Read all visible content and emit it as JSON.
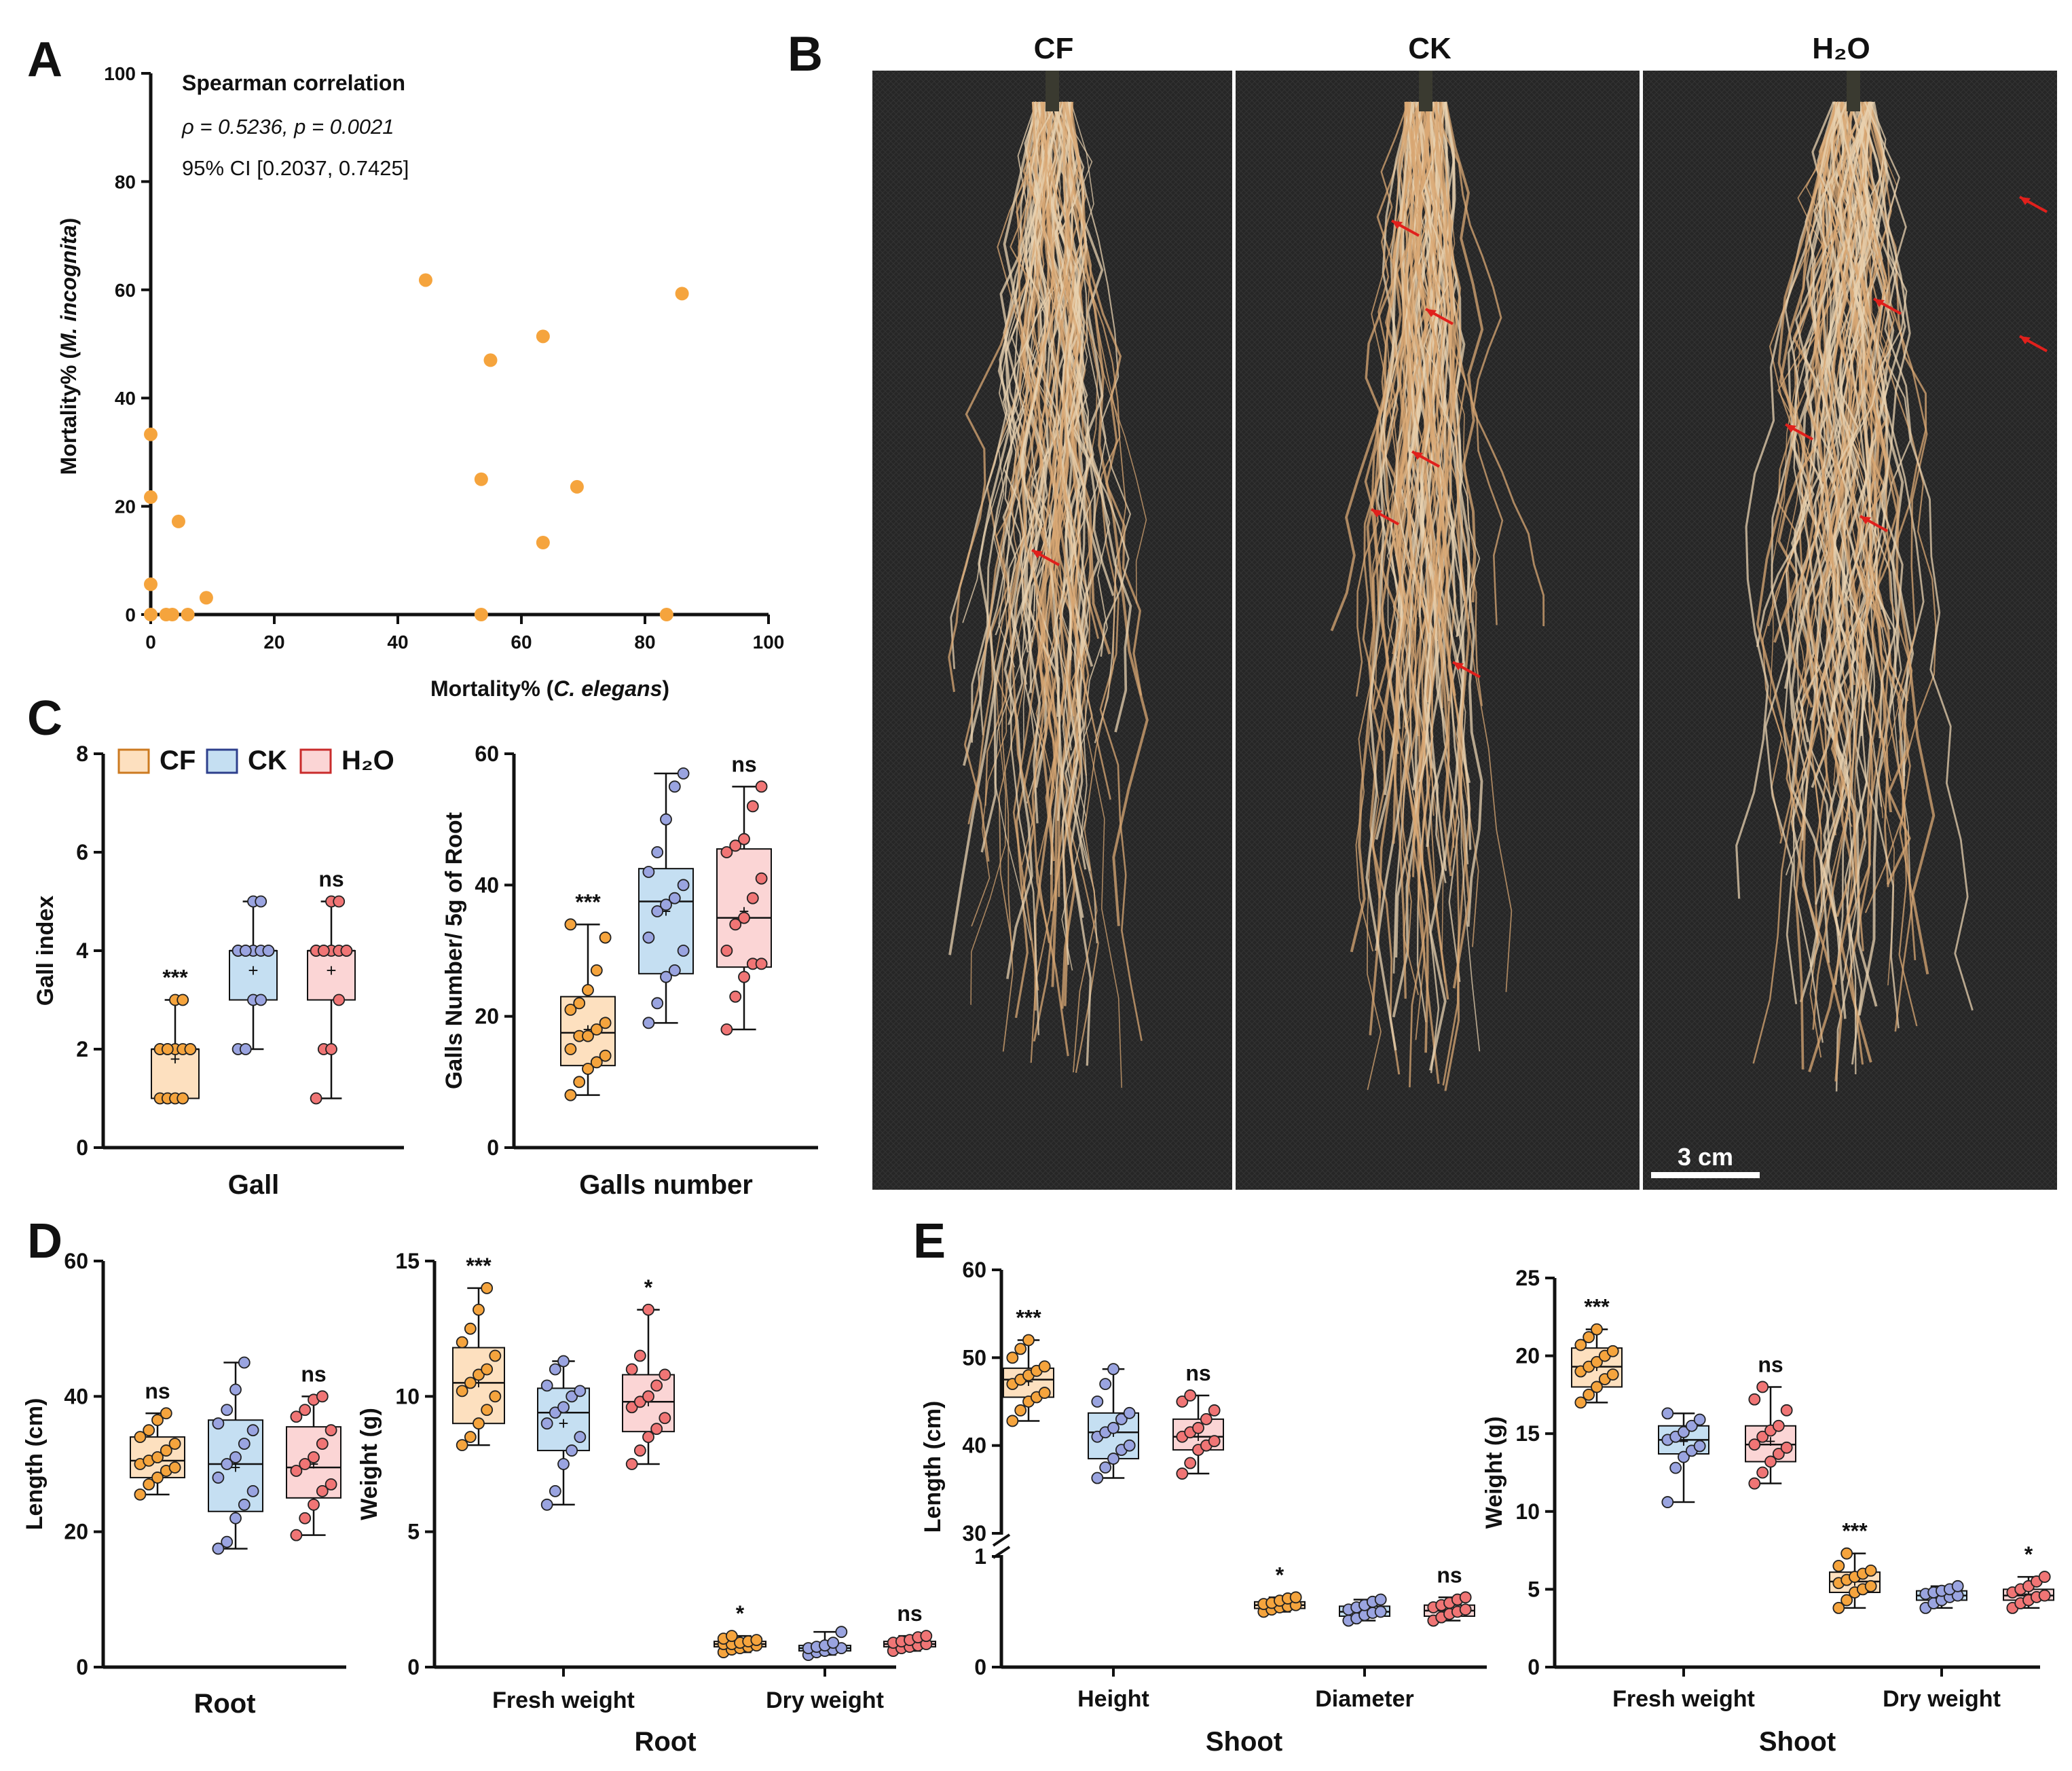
{
  "panel_letters": {
    "A": "A",
    "B": "B",
    "C": "C",
    "D": "D",
    "E": "E"
  },
  "colors": {
    "CF": {
      "fill": "#fde0bf",
      "stroke": "#cc7a20",
      "dot": "#f5a43d"
    },
    "CK": {
      "fill": "#c5dff2",
      "stroke": "#2d3f8c",
      "dot": "#9aa4e0"
    },
    "H2O": {
      "fill": "#fbd5d5",
      "stroke": "#c92b2b",
      "dot": "#f07575"
    },
    "scatter": "#f5a43d",
    "photo_bg": "#2a2a2a",
    "root": "#d9a874",
    "arrow": "#e0201c"
  },
  "legend": [
    {
      "key": "CF",
      "label": "CF"
    },
    {
      "key": "CK",
      "label": "CK"
    },
    {
      "key": "H2O",
      "label": "H₂O"
    }
  ],
  "photo": {
    "labels": [
      "CF",
      "CK",
      "H₂O"
    ],
    "scale_bar": "3 cm"
  },
  "chart_data": [
    {
      "id": "A",
      "type": "scatter",
      "xlabel_prefix": "Mortality% (",
      "xlabel_italic": "C. elegans",
      "xlabel_suffix": ")",
      "ylabel_prefix": "Mortality% (",
      "ylabel_italic": "M. incognita",
      "ylabel_suffix": ")",
      "xlim": [
        0,
        100
      ],
      "ylim": [
        0,
        100
      ],
      "xticks": [
        0,
        20,
        40,
        60,
        80,
        100
      ],
      "yticks": [
        0,
        20,
        40,
        60,
        80,
        100
      ],
      "annotation": {
        "title": "Spearman correlation",
        "rho_text": "ρ = 0.5236, ",
        "p_text": "p = 0.0021",
        "ci_text": "95% CI [0.2037, 0.7425]"
      },
      "points": [
        [
          0,
          33.3
        ],
        [
          0,
          21.7
        ],
        [
          0,
          5.6
        ],
        [
          0,
          0
        ],
        [
          2.5,
          0
        ],
        [
          3.5,
          0
        ],
        [
          4.5,
          17.2
        ],
        [
          6,
          0
        ],
        [
          9,
          3.1
        ],
        [
          44.5,
          61.8
        ],
        [
          53.5,
          25
        ],
        [
          53.5,
          0
        ],
        [
          55,
          47
        ],
        [
          63.5,
          51.4
        ],
        [
          63.5,
          13.3
        ],
        [
          69,
          23.6
        ],
        [
          83.5,
          0
        ],
        [
          86,
          59.3
        ]
      ]
    },
    {
      "id": "C1",
      "type": "boxplot",
      "ylabel": "Gall index",
      "xlabel": "Gall",
      "ylim": [
        0,
        8
      ],
      "yticks": [
        0,
        2,
        4,
        6,
        8
      ],
      "groups": [
        {
          "key": "CF",
          "min": 1,
          "q1": 1,
          "median": 2,
          "q3": 2,
          "max": 3,
          "mean": 1.8,
          "sig": "***",
          "points": [
            1,
            1,
            1,
            1,
            2,
            2,
            2,
            2,
            2,
            2,
            2,
            2,
            3,
            3
          ]
        },
        {
          "key": "CK",
          "min": 2,
          "q1": 3,
          "median": 4,
          "q3": 4,
          "max": 5,
          "mean": 3.6,
          "sig": "",
          "points": [
            2,
            2,
            3,
            3,
            4,
            4,
            4,
            4,
            4,
            4,
            4,
            4,
            5,
            5
          ]
        },
        {
          "key": "H2O",
          "min": 1,
          "q1": 3,
          "median": 4,
          "q3": 4,
          "max": 5,
          "mean": 3.6,
          "sig": "ns",
          "points": [
            1,
            2,
            2,
            3,
            4,
            4,
            4,
            4,
            4,
            4,
            4,
            4,
            5,
            5
          ]
        }
      ]
    },
    {
      "id": "C2",
      "type": "boxplot",
      "ylabel": "Galls Number/ 5g of Root",
      "xlabel": "Galls number",
      "ylim": [
        0,
        60
      ],
      "yticks": [
        0,
        20,
        40,
        60
      ],
      "groups": [
        {
          "key": "CF",
          "min": 8,
          "q1": 12.5,
          "median": 17.5,
          "q3": 23,
          "max": 34,
          "mean": 18,
          "sig": "***",
          "points": [
            8,
            10,
            12,
            13,
            14,
            15,
            17,
            17,
            18,
            19,
            21,
            22,
            24,
            27,
            32,
            34
          ]
        },
        {
          "key": "CK",
          "min": 19,
          "q1": 26.5,
          "median": 37.5,
          "q3": 42.5,
          "max": 57,
          "mean": 36,
          "sig": "",
          "points": [
            19,
            22,
            26,
            27,
            30,
            32,
            36,
            37,
            38,
            40,
            42,
            45,
            50,
            55,
            57
          ]
        },
        {
          "key": "H2O",
          "min": 18,
          "q1": 27.5,
          "median": 35,
          "q3": 45.5,
          "max": 55,
          "mean": 36,
          "sig": "ns",
          "points": [
            18,
            23,
            26,
            28,
            28,
            30,
            34,
            35,
            38,
            41,
            45,
            46,
            47,
            52,
            55
          ]
        }
      ]
    },
    {
      "id": "D1",
      "type": "boxplot",
      "ylabel": "Length (cm)",
      "xlabel": "Root",
      "ylim": [
        0,
        60
      ],
      "yticks": [
        0,
        20,
        40,
        60
      ],
      "groups": [
        {
          "key": "CF",
          "min": 25.5,
          "q1": 28,
          "median": 30.5,
          "q3": 34,
          "max": 37.5,
          "mean": 31,
          "sig": "ns",
          "points": [
            25.5,
            27,
            28,
            29,
            29.5,
            30,
            30.5,
            31,
            32,
            33,
            34,
            35,
            36.5,
            37.5
          ]
        },
        {
          "key": "CK",
          "min": 17.5,
          "q1": 23,
          "median": 30,
          "q3": 36.5,
          "max": 45,
          "mean": 29.5,
          "sig": "",
          "points": [
            17.5,
            18.5,
            22,
            24,
            26,
            28,
            30,
            31,
            33,
            35,
            36,
            38,
            41,
            45
          ]
        },
        {
          "key": "H2O",
          "min": 19.5,
          "q1": 25,
          "median": 29.5,
          "q3": 35.5,
          "max": 40,
          "mean": 30,
          "sig": "ns",
          "points": [
            19.5,
            22,
            24,
            26,
            27,
            29,
            30,
            31,
            33,
            35,
            37,
            38,
            39.5,
            40
          ]
        }
      ]
    },
    {
      "id": "D2",
      "type": "boxplot",
      "ylabel": "Weight (g)",
      "xlabel": "Root",
      "ylim": [
        0,
        15
      ],
      "yticks": [
        0,
        5,
        10,
        15
      ],
      "categories": [
        "Fresh weight",
        "Dry weight"
      ],
      "sets": [
        [
          {
            "key": "CF",
            "min": 8.2,
            "q1": 9,
            "median": 10.5,
            "q3": 11.8,
            "max": 14,
            "mean": 10.5,
            "sig": "***",
            "points": [
              8.2,
              8.5,
              9,
              9.5,
              10,
              10.2,
              10.5,
              10.8,
              11,
              11.5,
              12,
              12.5,
              13.2,
              14
            ]
          },
          {
            "key": "CK",
            "min": 6,
            "q1": 8,
            "median": 9.4,
            "q3": 10.3,
            "max": 11.3,
            "mean": 9,
            "sig": "",
            "points": [
              6,
              6.5,
              7.5,
              8,
              8.5,
              9,
              9.4,
              9.6,
              10,
              10.2,
              10.4,
              11,
              11.3
            ]
          },
          {
            "key": "H2O",
            "min": 7.5,
            "q1": 8.7,
            "median": 9.8,
            "q3": 10.8,
            "max": 13.2,
            "mean": 9.8,
            "sig": "*",
            "points": [
              7.5,
              8,
              8.5,
              8.8,
              9.2,
              9.6,
              9.8,
              10,
              10.4,
              10.8,
              11,
              11.5,
              13.2
            ]
          }
        ],
        [
          {
            "key": "CF",
            "min": 0.55,
            "q1": 0.75,
            "median": 0.85,
            "q3": 0.95,
            "max": 1.15,
            "mean": 0.85,
            "sig": "*",
            "points": [
              0.55,
              0.65,
              0.7,
              0.75,
              0.8,
              0.85,
              0.85,
              0.9,
              0.95,
              1.0,
              1.05,
              1.15
            ]
          },
          {
            "key": "CK",
            "min": 0.45,
            "q1": 0.6,
            "median": 0.7,
            "q3": 0.8,
            "max": 1.3,
            "mean": 0.72,
            "sig": "",
            "points": [
              0.45,
              0.55,
              0.6,
              0.65,
              0.7,
              0.7,
              0.75,
              0.8,
              0.9,
              1.3
            ]
          },
          {
            "key": "H2O",
            "min": 0.6,
            "q1": 0.75,
            "median": 0.85,
            "q3": 0.95,
            "max": 1.15,
            "mean": 0.85,
            "sig": "ns",
            "points": [
              0.6,
              0.7,
              0.75,
              0.8,
              0.85,
              0.9,
              0.95,
              1.0,
              1.1,
              1.15
            ]
          }
        ]
      ]
    },
    {
      "id": "E1",
      "type": "boxplot",
      "ylabel": "Length (cm)",
      "xlabel": "Shoot",
      "categories": [
        "Height",
        "Diameter"
      ],
      "upper_yticks": [
        30,
        40,
        50,
        60
      ],
      "lower_yticks": [
        0,
        1
      ],
      "sets": [
        [
          {
            "key": "CF",
            "min": 42.8,
            "q1": 45.5,
            "median": 47.5,
            "q3": 48.8,
            "max": 52,
            "mean": 47.3,
            "sig": "***",
            "points": [
              42.8,
              44,
              45,
              45.5,
              46,
              47,
              47.5,
              48,
              48.5,
              49,
              50,
              51,
              52
            ]
          },
          {
            "key": "CK",
            "min": 36.3,
            "q1": 38.5,
            "median": 41.5,
            "q3": 43.7,
            "max": 48.7,
            "mean": 41.5,
            "sig": "",
            "points": [
              36.3,
              37.5,
              38.5,
              39.5,
              40,
              41,
              41.5,
              42,
              43,
              43.7,
              45,
              47,
              48.7
            ]
          },
          {
            "key": "H2O",
            "min": 36.8,
            "q1": 39.5,
            "median": 41,
            "q3": 43,
            "max": 45.7,
            "mean": 41,
            "sig": "ns",
            "points": [
              36.8,
              38,
              39.5,
              40,
              40.5,
              41,
              41.5,
              42,
              43,
              44,
              45,
              45.7
            ]
          }
        ],
        [
          {
            "key": "CF",
            "min": 0.5,
            "q1": 0.53,
            "median": 0.56,
            "q3": 0.59,
            "max": 0.63,
            "mean": 0.56,
            "sig": "*",
            "points": [
              0.5,
              0.52,
              0.54,
              0.55,
              0.56,
              0.57,
              0.58,
              0.6,
              0.62,
              0.63
            ]
          },
          {
            "key": "CK",
            "min": 0.42,
            "q1": 0.46,
            "median": 0.5,
            "q3": 0.55,
            "max": 0.61,
            "mean": 0.5,
            "sig": "",
            "points": [
              0.42,
              0.44,
              0.47,
              0.49,
              0.5,
              0.52,
              0.54,
              0.56,
              0.59,
              0.61
            ]
          },
          {
            "key": "H2O",
            "min": 0.42,
            "q1": 0.46,
            "median": 0.51,
            "q3": 0.56,
            "max": 0.63,
            "mean": 0.51,
            "sig": "ns",
            "points": [
              0.42,
              0.45,
              0.48,
              0.5,
              0.52,
              0.54,
              0.56,
              0.58,
              0.61,
              0.63
            ]
          }
        ]
      ]
    },
    {
      "id": "E2",
      "type": "boxplot",
      "ylabel": "Weight (g)",
      "xlabel": "Shoot",
      "ylim": [
        0,
        25
      ],
      "yticks": [
        0,
        5,
        10,
        15,
        20,
        25
      ],
      "categories": [
        "Fresh weight",
        "Dry weight"
      ],
      "sets": [
        [
          {
            "key": "CF",
            "min": 17,
            "q1": 18,
            "median": 19.3,
            "q3": 20.5,
            "max": 21.7,
            "mean": 19.3,
            "sig": "***",
            "points": [
              17,
              17.5,
              18,
              18.5,
              18.8,
              19,
              19.3,
              19.6,
              20,
              20.3,
              20.7,
              21.2,
              21.7
            ]
          },
          {
            "key": "CK",
            "min": 10.6,
            "q1": 13.7,
            "median": 14.6,
            "q3": 15.5,
            "max": 16.3,
            "mean": 14.5,
            "sig": "",
            "points": [
              10.6,
              12.8,
              13.5,
              13.9,
              14.2,
              14.6,
              14.8,
              15.1,
              15.5,
              15.9,
              16.3
            ]
          },
          {
            "key": "H2O",
            "min": 11.8,
            "q1": 13.2,
            "median": 14.3,
            "q3": 15.5,
            "max": 18,
            "mean": 14.5,
            "sig": "ns",
            "points": [
              11.8,
              12.5,
              13.2,
              13.7,
              14.1,
              14.3,
              14.8,
              15.2,
              15.5,
              16.5,
              17.2,
              18
            ]
          }
        ],
        [
          {
            "key": "CF",
            "min": 3.8,
            "q1": 4.8,
            "median": 5.5,
            "q3": 6.1,
            "max": 7.3,
            "mean": 5.5,
            "sig": "***",
            "points": [
              3.8,
              4.3,
              4.8,
              5,
              5.2,
              5.4,
              5.6,
              5.8,
              6,
              6.2,
              6.5,
              7.3
            ]
          },
          {
            "key": "CK",
            "min": 3.8,
            "q1": 4.3,
            "median": 4.6,
            "q3": 4.9,
            "max": 5.2,
            "mean": 4.6,
            "sig": "",
            "points": [
              3.8,
              4.1,
              4.3,
              4.5,
              4.6,
              4.7,
              4.8,
              4.9,
              5.0,
              5.2
            ]
          },
          {
            "key": "H2O",
            "min": 3.8,
            "q1": 4.3,
            "median": 4.6,
            "q3": 5.0,
            "max": 5.8,
            "mean": 4.7,
            "sig": "*",
            "points": [
              3.8,
              4.1,
              4.3,
              4.5,
              4.6,
              4.8,
              5.0,
              5.2,
              5.5,
              5.8
            ]
          }
        ]
      ]
    }
  ]
}
